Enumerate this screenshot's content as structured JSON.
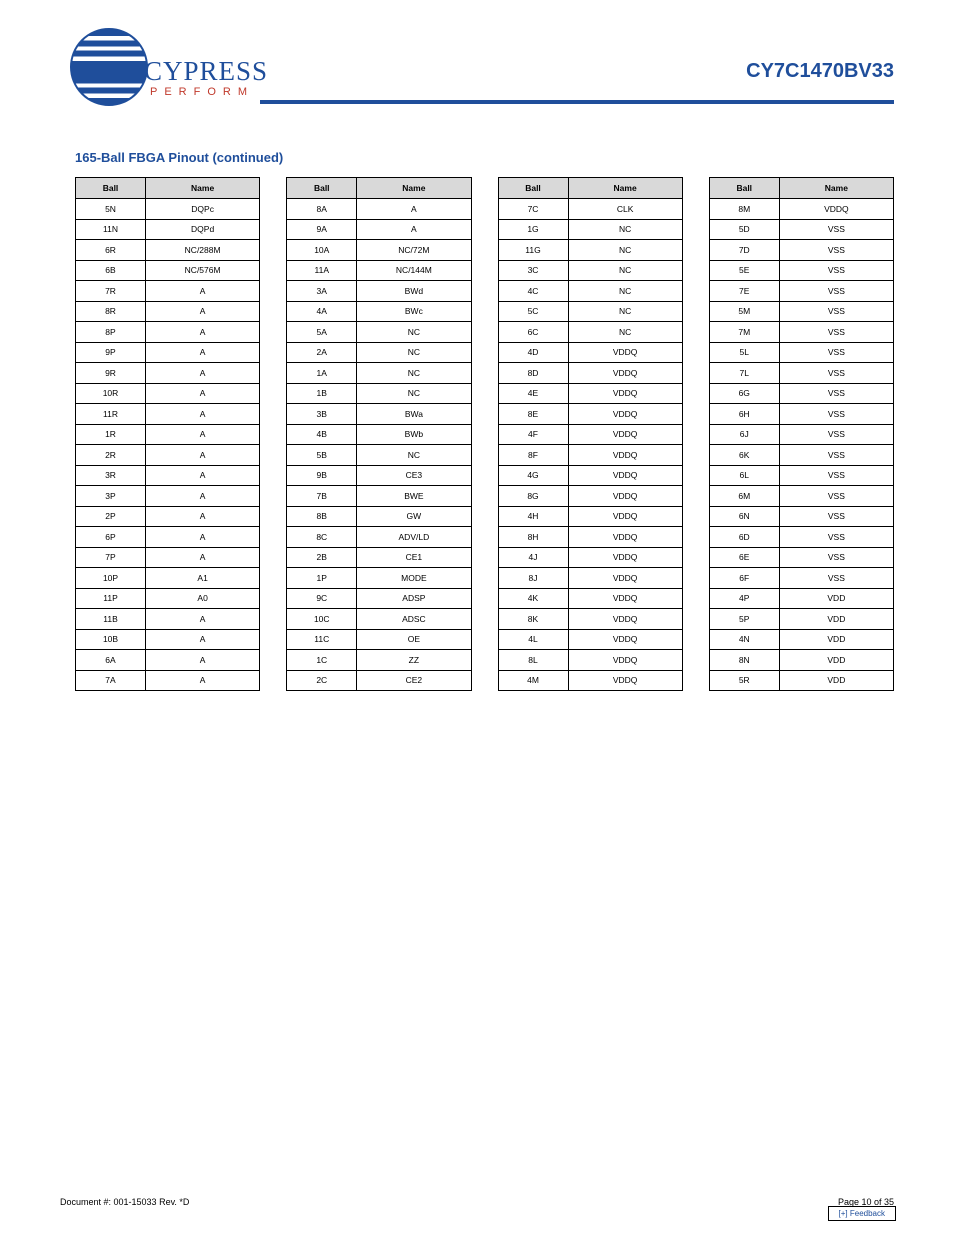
{
  "header": {
    "brand": "CYPRESS",
    "tagline": "PERFORM",
    "doc_title": "CY7C1470BV33"
  },
  "section": {
    "title": "165-Ball FBGA Pinout (continued)"
  },
  "colors": {
    "brand_blue": "#1f4e9b",
    "brand_red": "#c0392b",
    "header_bg": "#d9d9d9",
    "border": "#000000",
    "page_bg": "#ffffff"
  },
  "columns": [
    "Ball",
    "Name"
  ],
  "tables": [
    [
      [
        "5N",
        "DQPc"
      ],
      [
        "11N",
        "DQPd"
      ],
      [
        "6R",
        "NC/288M"
      ],
      [
        "6B",
        "NC/576M"
      ],
      [
        "7R",
        "A"
      ],
      [
        "8R",
        "A"
      ],
      [
        "8P",
        "A"
      ],
      [
        "9P",
        "A"
      ],
      [
        "9R",
        "A"
      ],
      [
        "10R",
        "A"
      ],
      [
        "11R",
        "A"
      ],
      [
        "1R",
        "A"
      ],
      [
        "2R",
        "A"
      ],
      [
        "3R",
        "A"
      ],
      [
        "3P",
        "A"
      ],
      [
        "2P",
        "A"
      ],
      [
        "6P",
        "A"
      ],
      [
        "7P",
        "A"
      ],
      [
        "10P",
        "A1"
      ],
      [
        "11P",
        "A0"
      ],
      [
        "11B",
        "A"
      ],
      [
        "10B",
        "A"
      ],
      [
        "6A",
        "A"
      ],
      [
        "7A",
        "A"
      ]
    ],
    [
      [
        "8A",
        "A"
      ],
      [
        "9A",
        "A"
      ],
      [
        "10A",
        "NC/72M"
      ],
      [
        "11A",
        "NC/144M"
      ],
      [
        "3A",
        "BWd"
      ],
      [
        "4A",
        "BWc"
      ],
      [
        "5A",
        "NC"
      ],
      [
        "2A",
        "NC"
      ],
      [
        "1A",
        "NC"
      ],
      [
        "1B",
        "NC"
      ],
      [
        "3B",
        "BWa"
      ],
      [
        "4B",
        "BWb"
      ],
      [
        "5B",
        "NC"
      ],
      [
        "9B",
        "CE3"
      ],
      [
        "7B",
        "BWE"
      ],
      [
        "8B",
        "GW"
      ],
      [
        "8C",
        "ADV/LD"
      ],
      [
        "2B",
        "CE1"
      ],
      [
        "1P",
        "MODE"
      ],
      [
        "9C",
        "ADSP"
      ],
      [
        "10C",
        "ADSC"
      ],
      [
        "11C",
        "OE"
      ],
      [
        "1C",
        "ZZ"
      ],
      [
        "2C",
        "CE2"
      ]
    ],
    [
      [
        "7C",
        "CLK"
      ],
      [
        "1G",
        "NC"
      ],
      [
        "11G",
        "NC"
      ],
      [
        "3C",
        "NC"
      ],
      [
        "4C",
        "NC"
      ],
      [
        "5C",
        "NC"
      ],
      [
        "6C",
        "NC"
      ],
      [
        "4D",
        "VDDQ"
      ],
      [
        "8D",
        "VDDQ"
      ],
      [
        "4E",
        "VDDQ"
      ],
      [
        "8E",
        "VDDQ"
      ],
      [
        "4F",
        "VDDQ"
      ],
      [
        "8F",
        "VDDQ"
      ],
      [
        "4G",
        "VDDQ"
      ],
      [
        "8G",
        "VDDQ"
      ],
      [
        "4H",
        "VDDQ"
      ],
      [
        "8H",
        "VDDQ"
      ],
      [
        "4J",
        "VDDQ"
      ],
      [
        "8J",
        "VDDQ"
      ],
      [
        "4K",
        "VDDQ"
      ],
      [
        "8K",
        "VDDQ"
      ],
      [
        "4L",
        "VDDQ"
      ],
      [
        "8L",
        "VDDQ"
      ],
      [
        "4M",
        "VDDQ"
      ]
    ],
    [
      [
        "8M",
        "VDDQ"
      ],
      [
        "5D",
        "VSS"
      ],
      [
        "7D",
        "VSS"
      ],
      [
        "5E",
        "VSS"
      ],
      [
        "7E",
        "VSS"
      ],
      [
        "5M",
        "VSS"
      ],
      [
        "7M",
        "VSS"
      ],
      [
        "5L",
        "VSS"
      ],
      [
        "7L",
        "VSS"
      ],
      [
        "6G",
        "VSS"
      ],
      [
        "6H",
        "VSS"
      ],
      [
        "6J",
        "VSS"
      ],
      [
        "6K",
        "VSS"
      ],
      [
        "6L",
        "VSS"
      ],
      [
        "6M",
        "VSS"
      ],
      [
        "6N",
        "VSS"
      ],
      [
        "6D",
        "VSS"
      ],
      [
        "6E",
        "VSS"
      ],
      [
        "6F",
        "VSS"
      ],
      [
        "4P",
        "VDD"
      ],
      [
        "5P",
        "VDD"
      ],
      [
        "4N",
        "VDD"
      ],
      [
        "8N",
        "VDD"
      ],
      [
        "5R",
        "VDD"
      ]
    ]
  ],
  "footer": {
    "docnum": "Document #: 001-15033 Rev. *D",
    "page": "Page 10 of 35",
    "feedback": "[+] Feedback"
  }
}
